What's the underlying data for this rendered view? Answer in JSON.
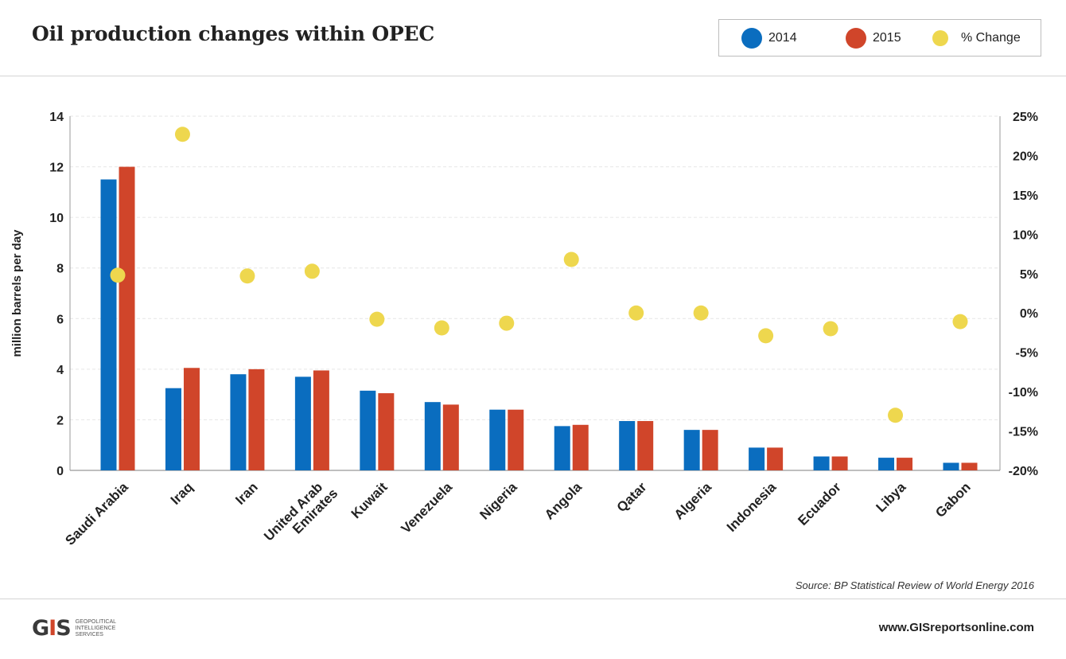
{
  "header": {
    "title": "Oil production changes within OPEC"
  },
  "legend": {
    "items": [
      {
        "label": "2014",
        "color": "#0a6dbf"
      },
      {
        "label": "2015",
        "color": "#d0452a"
      },
      {
        "label": "% Change",
        "color": "#eed74e"
      }
    ]
  },
  "chart_data": {
    "type": "bar",
    "categories": [
      "Saudi Arabia",
      "Iraq",
      "Iran",
      "United Arab Emirates",
      "Kuwait",
      "Venezuela",
      "Nigeria",
      "Angola",
      "Qatar",
      "Algeria",
      "Indonesia",
      "Ecuador",
      "Libya",
      "Gabon"
    ],
    "category_lines": [
      [
        "Saudi Arabia"
      ],
      [
        "Iraq"
      ],
      [
        "Iran"
      ],
      [
        "United Arab",
        "Emirates"
      ],
      [
        "Kuwait"
      ],
      [
        "Venezuela"
      ],
      [
        "Nigeria"
      ],
      [
        "Angola"
      ],
      [
        "Qatar"
      ],
      [
        "Algeria"
      ],
      [
        "Indonesia"
      ],
      [
        "Ecuador"
      ],
      [
        "Libya"
      ],
      [
        "Gabon"
      ]
    ],
    "series": [
      {
        "name": "2014",
        "axis": "left",
        "color": "#0a6dbf",
        "values": [
          11.5,
          3.25,
          3.8,
          3.7,
          3.15,
          2.7,
          2.4,
          1.75,
          1.95,
          1.6,
          0.9,
          0.55,
          0.5,
          0.3
        ]
      },
      {
        "name": "2015",
        "axis": "left",
        "color": "#d0452a",
        "values": [
          12.0,
          4.05,
          4.0,
          3.95,
          3.05,
          2.6,
          2.4,
          1.8,
          1.95,
          1.6,
          0.9,
          0.55,
          0.5,
          0.3
        ]
      },
      {
        "name": "% Change",
        "axis": "right",
        "type": "scatter",
        "color": "#eed74e",
        "values": [
          4.8,
          22.7,
          4.7,
          5.3,
          -0.8,
          -1.9,
          -1.3,
          6.8,
          0.0,
          0.0,
          -2.9,
          -2.0,
          -13.0,
          -1.1
        ]
      }
    ],
    "ylabel": "million barrels per day",
    "ylim": [
      0,
      14
    ],
    "yticks": [
      "0",
      "2",
      "4",
      "6",
      "8",
      "10",
      "12",
      "14"
    ],
    "y2lim": [
      -20,
      25
    ],
    "y2ticks": [
      "-20%",
      "-15%",
      "-10%",
      "-5%",
      "0%",
      "5%",
      "10%",
      "15%",
      "20%",
      "25%"
    ],
    "grid": true,
    "legend_position": "top-right"
  },
  "footer": {
    "source": "Source: BP Statistical Review of World Energy 2016",
    "logo_mark": "GIS",
    "logo_lines": [
      "GEOPOLITICAL",
      "INTELLIGENCE",
      "SERVICES"
    ],
    "website": "www.GISreportsonline.com"
  }
}
